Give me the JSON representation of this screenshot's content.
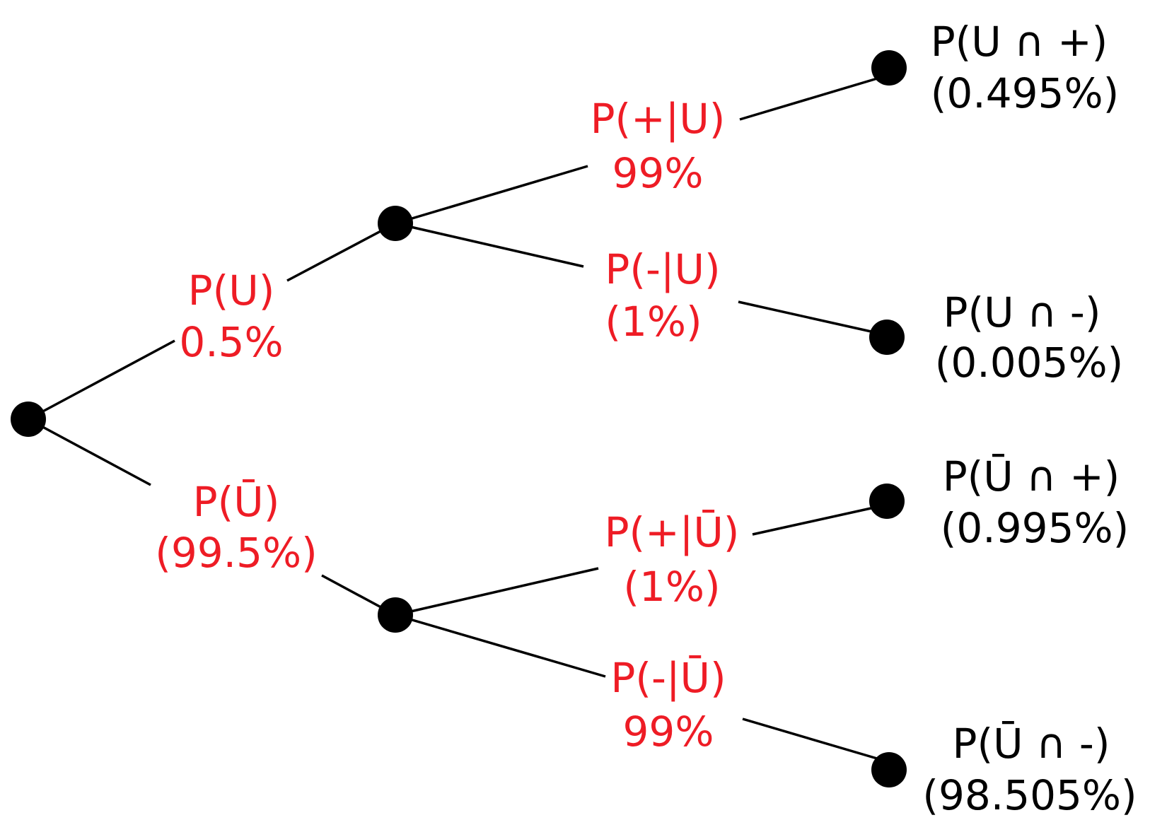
{
  "colors": {
    "branch_text": "#ee1c25",
    "outcome_text": "#000000",
    "lines": "#000000",
    "nodes": "#000000"
  },
  "branches": {
    "u": {
      "event": "P(U)",
      "prob": "0.5%"
    },
    "not_u": {
      "event": "P(Ū)",
      "prob": "(99.5%)"
    },
    "pos_given_u": {
      "event": "P(+|U)",
      "prob": "99%"
    },
    "neg_given_u": {
      "event": "P(-|U)",
      "prob": "(1%)"
    },
    "pos_given_not_u": {
      "event": "P(+|Ū)",
      "prob": "(1%)"
    },
    "neg_given_not_u": {
      "event": "P(-|Ū)",
      "prob": "99%"
    }
  },
  "outcomes": {
    "u_and_pos": {
      "event": "P(U ∩ +)",
      "prob": "(0.495%)"
    },
    "u_and_neg": {
      "event": "P(U ∩ -)",
      "prob": "(0.005%)"
    },
    "not_u_and_pos": {
      "event": "P(Ū ∩ +)",
      "prob": "(0.995%)"
    },
    "not_u_and_neg": {
      "event": "P(Ū ∩ -)",
      "prob": "(98.505%)"
    }
  }
}
